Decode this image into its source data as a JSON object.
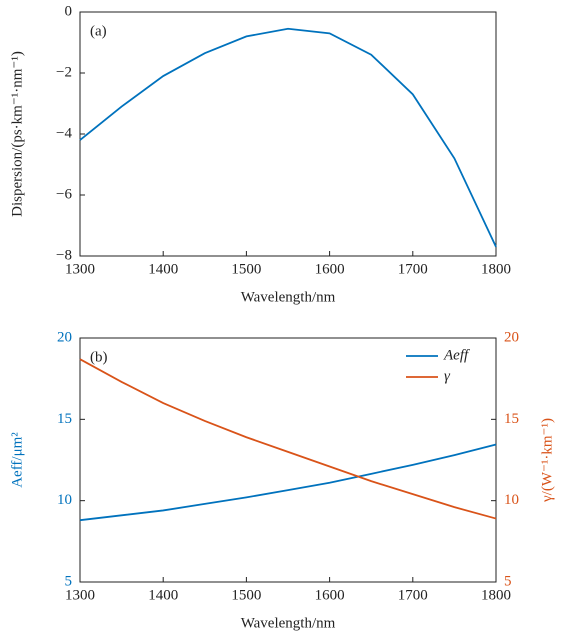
{
  "chart_data": [
    {
      "type": "line",
      "annotation": "(a)",
      "xlabel": "Wavelength/nm",
      "ylabel": "Dispersion/(ps·km⁻¹·nm⁻¹)",
      "x": [
        1300,
        1350,
        1400,
        1450,
        1500,
        1550,
        1600,
        1650,
        1700,
        1750,
        1800
      ],
      "series": [
        {
          "color": "#0072bd",
          "values": [
            -4.2,
            -3.1,
            -2.1,
            -1.35,
            -0.8,
            -0.55,
            -0.7,
            -1.4,
            -2.7,
            -4.8,
            -7.7
          ]
        }
      ],
      "xlim": [
        1300,
        1800
      ],
      "xticks": [
        1300,
        1400,
        1500,
        1600,
        1700,
        1800
      ],
      "ylim": [
        -8,
        0
      ],
      "yticks": [
        {
          "value": -8,
          "label": "−8"
        },
        {
          "value": -6,
          "label": "−6"
        },
        {
          "value": -4,
          "label": "−4"
        },
        {
          "value": -2,
          "label": "−2"
        },
        0
      ]
    },
    {
      "type": "line",
      "annotation": "(b)",
      "xlabel": "Wavelength/nm",
      "ylabel": "Aeff/μm²",
      "y2label": "γ/(W⁻¹·km⁻¹)",
      "ycolor": "#0072bd",
      "y2color": "#d95319",
      "legend": "upper right",
      "x": [
        1300,
        1350,
        1400,
        1450,
        1500,
        1550,
        1600,
        1650,
        1700,
        1750,
        1800
      ],
      "series": [
        {
          "name": "Aeff",
          "color": "#0072bd",
          "values": [
            8.8,
            9.1,
            9.4,
            9.8,
            10.2,
            10.65,
            11.1,
            11.65,
            12.2,
            12.8,
            13.45
          ]
        },
        {
          "name": "γ",
          "color": "#d95319",
          "axis": "y2",
          "values": [
            18.7,
            17.3,
            16.0,
            14.9,
            13.9,
            13.0,
            12.1,
            11.2,
            10.4,
            9.6,
            8.9
          ]
        }
      ],
      "xlim": [
        1300,
        1800
      ],
      "xticks": [
        1300,
        1400,
        1500,
        1600,
        1700,
        1800
      ],
      "ylim": [
        5,
        20
      ],
      "yticks": [
        5,
        10,
        15,
        20
      ],
      "y2lim": [
        5,
        20
      ],
      "y2ticks": [
        5,
        10,
        15,
        20
      ]
    }
  ]
}
